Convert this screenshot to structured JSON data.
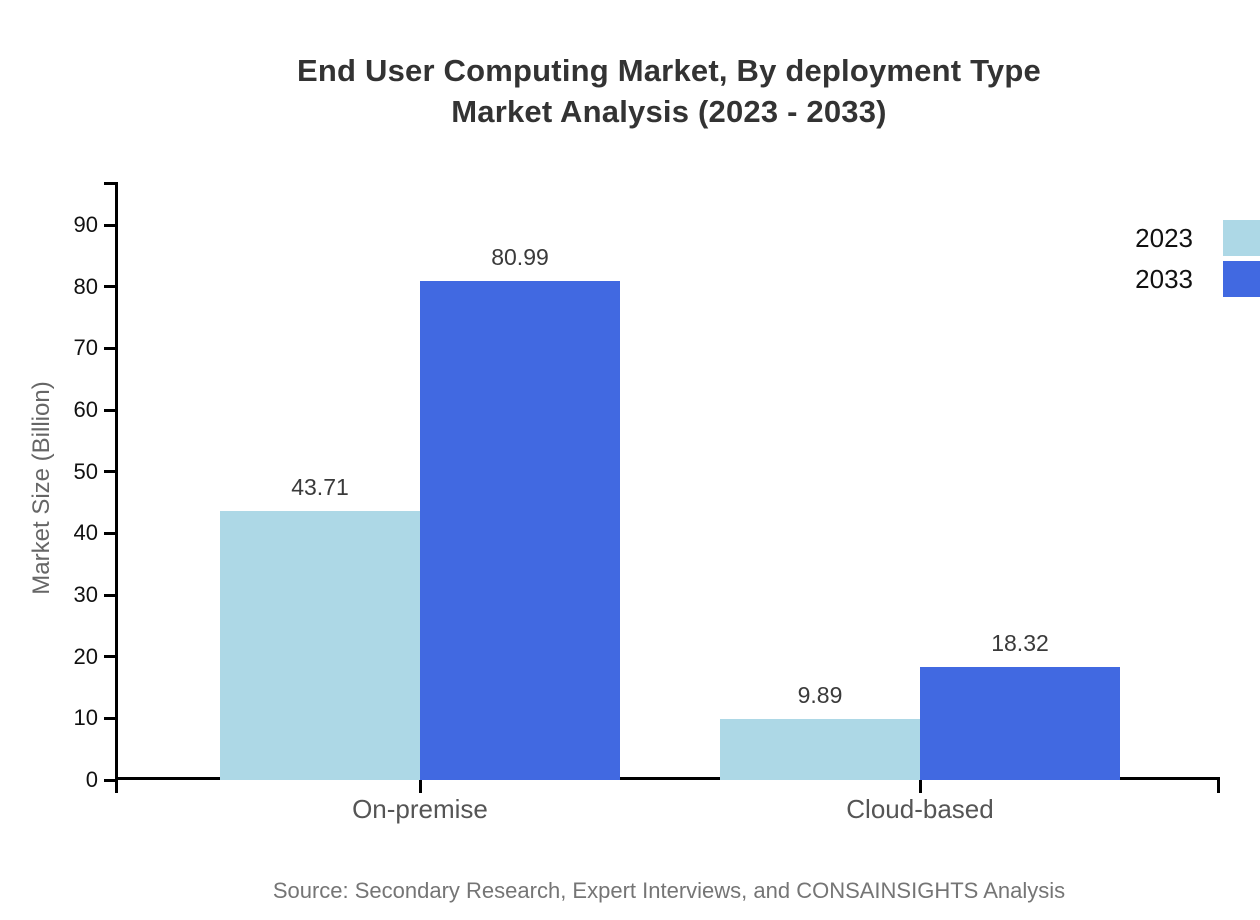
{
  "title": {
    "line1": "End User Computing Market, By deployment Type",
    "line2": "Market Analysis (2023 - 2033)"
  },
  "source": "Source: Secondary Research, Expert Interviews, and CONSAINSIGHTS Analysis",
  "chart_data": {
    "type": "bar",
    "title": "End User Computing Market, By deployment Type Market Analysis (2023 - 2033)",
    "categories": [
      "On-premise",
      "Cloud-based"
    ],
    "series": [
      {
        "name": "2023",
        "color": "#ADD8E6",
        "values": [
          43.71,
          9.89
        ]
      },
      {
        "name": "2033",
        "color": "#4169E1",
        "values": [
          80.99,
          18.32
        ]
      }
    ],
    "value_labels": [
      "43.71",
      "80.99",
      "9.89",
      "18.32"
    ],
    "xlabel": "",
    "ylabel": "Market Size (Billion)",
    "ylim": [
      0,
      97
    ],
    "yticks": [
      0,
      10,
      20,
      30,
      40,
      50,
      60,
      70,
      80,
      90
    ],
    "grid": false,
    "legend_position": "top-right",
    "axis_color": "#000000",
    "text_colors": {
      "title": "#333333",
      "tick_label": "#111111",
      "category_label": "#555555",
      "value_label": "#3a3a3a",
      "legend_label": "#111111",
      "axis_title": "#666666",
      "source": "#757575"
    }
  }
}
